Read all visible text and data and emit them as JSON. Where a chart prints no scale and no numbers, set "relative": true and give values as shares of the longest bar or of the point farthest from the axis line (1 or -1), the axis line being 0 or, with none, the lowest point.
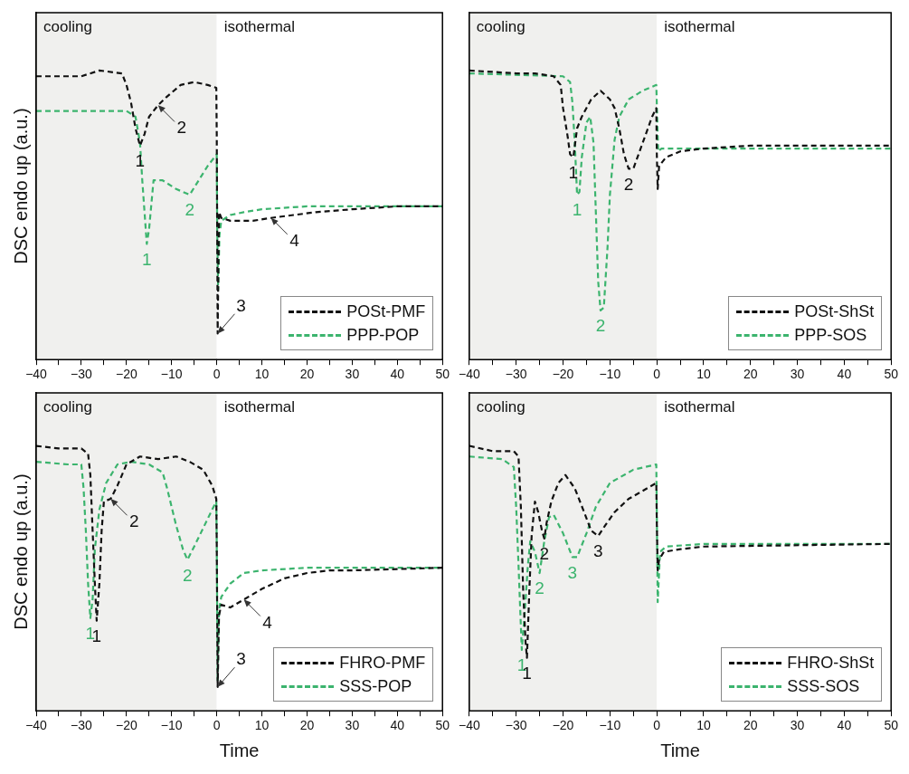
{
  "chart_data": [
    {
      "type": "line",
      "ylabel": "DSC endo up (a.u.)",
      "relative": true,
      "line_style": "dashed",
      "legend": "bottom right",
      "xlim": [
        -40,
        50
      ],
      "xticks": [
        -40,
        {
          "value": -35,
          "label": null
        },
        -30,
        {
          "value": -25,
          "label": null
        },
        -20,
        {
          "value": -15,
          "label": null
        },
        -10,
        {
          "value": -5,
          "label": null
        },
        0,
        {
          "value": 5,
          "label": null
        },
        10,
        {
          "value": 15,
          "label": null
        },
        20,
        {
          "value": 25,
          "label": null
        },
        30,
        {
          "value": 35,
          "label": null
        },
        40,
        {
          "value": 45,
          "label": null
        },
        50
      ],
      "bands": [
        {
          "axis": "x",
          "from": -40,
          "to": 0,
          "label": "cooling",
          "color": "#f0f0ee"
        },
        {
          "axis": "x",
          "from": 0,
          "to": 50,
          "label": "isothermal",
          "color": "#ffffff"
        }
      ],
      "series": [
        {
          "name": "POSt-PMF",
          "color": "#111111",
          "x": [
            -40,
            -30,
            -26,
            -21,
            -20,
            -19,
            -18,
            -17,
            -16,
            -15,
            -13,
            -11,
            -8,
            -5,
            -2,
            -0.1,
            0,
            0.2,
            0.5,
            1,
            3,
            8,
            12,
            17,
            22,
            30,
            40,
            50
          ],
          "values": [
            0.98,
            0.98,
            1.0,
            0.99,
            0.95,
            0.89,
            0.8,
            0.74,
            0.78,
            0.84,
            0.88,
            0.91,
            0.95,
            0.96,
            0.95,
            0.94,
            0.78,
            0.09,
            0.51,
            0.49,
            0.48,
            0.48,
            0.49,
            0.5,
            0.51,
            0.52,
            0.53,
            0.53
          ]
        },
        {
          "name": "PPP-POP",
          "color": "#3cb46e",
          "x": [
            -40,
            -20,
            -18,
            -17,
            -16.5,
            -16,
            -15.5,
            -15,
            -14,
            -12,
            -9,
            -6,
            -4,
            -2,
            0,
            0.1,
            0.3,
            0.6,
            1,
            3,
            6,
            10,
            20,
            30,
            50
          ],
          "values": [
            0.86,
            0.86,
            0.84,
            0.75,
            0.62,
            0.51,
            0.4,
            0.45,
            0.62,
            0.62,
            0.59,
            0.57,
            0.62,
            0.67,
            0.71,
            0.45,
            0.24,
            0.43,
            0.48,
            0.5,
            0.51,
            0.52,
            0.53,
            0.53,
            0.53
          ]
        }
      ],
      "annotations": [
        {
          "text": "1",
          "x": -17,
          "y": 0.74
        },
        {
          "text": "2",
          "x": -13,
          "y": 0.88
        },
        {
          "text": "1",
          "x": -15.5,
          "y": 0.4
        },
        {
          "text": "2",
          "x": -6,
          "y": 0.57
        },
        {
          "text": "3",
          "x": 0.2,
          "y": 0.09
        },
        {
          "text": "4",
          "x": 12,
          "y": 0.49
        }
      ]
    },
    {
      "type": "line",
      "relative": true,
      "line_style": "dashed",
      "legend": "bottom right",
      "xlim": [
        -40,
        50
      ],
      "xticks": [
        -40,
        {
          "value": -35,
          "label": null
        },
        -30,
        {
          "value": -25,
          "label": null
        },
        -20,
        {
          "value": -15,
          "label": null
        },
        -10,
        {
          "value": -5,
          "label": null
        },
        0,
        {
          "value": 5,
          "label": null
        },
        10,
        {
          "value": 15,
          "label": null
        },
        20,
        {
          "value": 25,
          "label": null
        },
        30,
        {
          "value": 35,
          "label": null
        },
        40,
        {
          "value": 45,
          "label": null
        },
        50
      ],
      "bands": [
        {
          "axis": "x",
          "from": -40,
          "to": 0,
          "label": "cooling",
          "color": "#f0f0ee"
        },
        {
          "axis": "x",
          "from": 0,
          "to": 50,
          "label": "isothermal",
          "color": "#ffffff"
        }
      ],
      "series": [
        {
          "name": "POSt-ShSt",
          "color": "#111111",
          "x": [
            -40,
            -30,
            -26,
            -22,
            -20.5,
            -20,
            -19,
            -18.5,
            -17.8,
            -17,
            -16,
            -14,
            -12,
            -10,
            -9,
            -8,
            -7,
            -6,
            -5,
            -3,
            -1,
            -0.1,
            0,
            0.2,
            0.5,
            2,
            5,
            10,
            20,
            50
          ],
          "values": [
            1.0,
            0.99,
            0.99,
            0.98,
            0.95,
            0.87,
            0.77,
            0.71,
            0.7,
            0.8,
            0.84,
            0.9,
            0.93,
            0.9,
            0.87,
            0.8,
            0.71,
            0.66,
            0.66,
            0.75,
            0.84,
            0.87,
            0.72,
            0.59,
            0.67,
            0.7,
            0.72,
            0.73,
            0.74,
            0.74
          ]
        },
        {
          "name": "PPP-SOS",
          "color": "#3cb46e",
          "x": [
            -40,
            -20,
            -18.5,
            -18,
            -17.5,
            -17,
            -16.5,
            -16,
            -15,
            -14.2,
            -13.5,
            -13,
            -12.5,
            -12,
            -11.3,
            -10.5,
            -10,
            -9,
            -8,
            -6,
            -3,
            -0.1,
            0,
            0.3,
            1,
            5,
            20,
            50
          ],
          "values": [
            0.99,
            0.98,
            0.96,
            0.89,
            0.75,
            0.57,
            0.58,
            0.7,
            0.82,
            0.84,
            0.75,
            0.51,
            0.27,
            0.17,
            0.18,
            0.39,
            0.57,
            0.76,
            0.84,
            0.9,
            0.93,
            0.95,
            0.89,
            0.72,
            0.73,
            0.73,
            0.73,
            0.73
          ]
        }
      ],
      "annotations": [
        {
          "text": "1",
          "x": -17.8,
          "y": 0.7
        },
        {
          "text": "1",
          "x": -17,
          "y": 0.57
        },
        {
          "text": "2",
          "x": -6,
          "y": 0.66
        },
        {
          "text": "2",
          "x": -12,
          "y": 0.17
        }
      ]
    },
    {
      "type": "line",
      "xlabel": "Time",
      "ylabel": "DSC endo up (a.u.)",
      "relative": true,
      "line_style": "dashed",
      "legend": "bottom right",
      "xlim": [
        -40,
        50
      ],
      "xticks": [
        -40,
        {
          "value": -35,
          "label": null
        },
        -30,
        {
          "value": -25,
          "label": null
        },
        -20,
        {
          "value": -15,
          "label": null
        },
        -10,
        {
          "value": -5,
          "label": null
        },
        0,
        {
          "value": 5,
          "label": null
        },
        10,
        {
          "value": 15,
          "label": null
        },
        20,
        {
          "value": 25,
          "label": null
        },
        30,
        {
          "value": 35,
          "label": null
        },
        40,
        {
          "value": 45,
          "label": null
        },
        50
      ],
      "bands": [
        {
          "axis": "x",
          "from": -40,
          "to": 0,
          "label": "cooling",
          "color": "#f0f0ee"
        },
        {
          "axis": "x",
          "from": 0,
          "to": 50,
          "label": "isothermal",
          "color": "#ffffff"
        }
      ],
      "series": [
        {
          "name": "FHRO-PMF",
          "color": "#111111",
          "x": [
            -40,
            -35,
            -30,
            -28.5,
            -28,
            -27.5,
            -27,
            -26.6,
            -26,
            -25.5,
            -25,
            -23.5,
            -22,
            -20,
            -17,
            -13,
            -9,
            -6,
            -3,
            -1,
            -0.1,
            0,
            0.2,
            0.5,
            1,
            3,
            6,
            10,
            15,
            20,
            25,
            30,
            50
          ],
          "values": [
            1.0,
            0.99,
            0.99,
            0.97,
            0.89,
            0.68,
            0.48,
            0.34,
            0.48,
            0.68,
            0.79,
            0.8,
            0.85,
            0.93,
            0.96,
            0.95,
            0.96,
            0.94,
            0.91,
            0.85,
            0.8,
            0.63,
            0.09,
            0.36,
            0.4,
            0.39,
            0.42,
            0.46,
            0.5,
            0.52,
            0.53,
            0.53,
            0.54
          ]
        },
        {
          "name": "SSS-POP",
          "color": "#3cb46e",
          "x": [
            -40,
            -33,
            -30,
            -29.5,
            -29,
            -28.5,
            -28,
            -27.5,
            -27,
            -26,
            -24.5,
            -22,
            -19,
            -15,
            -12,
            -11,
            -9,
            -7.5,
            -6.5,
            -5,
            -3,
            -1,
            -0.1,
            0,
            0.2,
            0.5,
            1,
            3,
            6,
            10,
            20,
            50
          ],
          "values": [
            0.94,
            0.93,
            0.93,
            0.84,
            0.68,
            0.48,
            0.35,
            0.42,
            0.61,
            0.76,
            0.86,
            0.93,
            0.94,
            0.93,
            0.9,
            0.84,
            0.7,
            0.61,
            0.57,
            0.62,
            0.69,
            0.76,
            0.79,
            0.63,
            0.11,
            0.38,
            0.43,
            0.48,
            0.52,
            0.53,
            0.54,
            0.54
          ]
        }
      ],
      "annotations": [
        {
          "text": "1",
          "x": -28,
          "y": 0.35
        },
        {
          "text": "1",
          "x": -26.6,
          "y": 0.34
        },
        {
          "text": "2",
          "x": -23.5,
          "y": 0.8
        },
        {
          "text": "2",
          "x": -6.5,
          "y": 0.57
        },
        {
          "text": "3",
          "x": 0.2,
          "y": 0.09
        },
        {
          "text": "4",
          "x": 6,
          "y": 0.42
        }
      ]
    },
    {
      "type": "line",
      "xlabel": "Time",
      "relative": true,
      "line_style": "dashed",
      "legend": "bottom right",
      "xlim": [
        -40,
        50
      ],
      "xticks": [
        -40,
        {
          "value": -35,
          "label": null
        },
        -30,
        {
          "value": -25,
          "label": null
        },
        -20,
        {
          "value": -15,
          "label": null
        },
        -10,
        {
          "value": -5,
          "label": null
        },
        0,
        {
          "value": 5,
          "label": null
        },
        10,
        {
          "value": 15,
          "label": null
        },
        20,
        {
          "value": 25,
          "label": null
        },
        30,
        {
          "value": 35,
          "label": null
        },
        40,
        {
          "value": 45,
          "label": null
        },
        50
      ],
      "bands": [
        {
          "axis": "x",
          "from": -40,
          "to": 0,
          "label": "cooling",
          "color": "#f0f0ee"
        },
        {
          "axis": "x",
          "from": 0,
          "to": 50,
          "label": "isothermal",
          "color": "#ffffff"
        }
      ],
      "series": [
        {
          "name": "FHRO-ShSt",
          "color": "#111111",
          "x": [
            -40,
            -35,
            -30.5,
            -29.5,
            -29,
            -28.5,
            -28,
            -27.7,
            -27.2,
            -26.7,
            -26,
            -25.3,
            -24.5,
            -24,
            -23.5,
            -22.5,
            -21,
            -19.5,
            -17.5,
            -15.5,
            -14,
            -12.5,
            -11,
            -9,
            -6,
            -3,
            -0.1,
            0,
            0.2,
            0.5,
            1.5,
            5,
            10,
            50
          ],
          "values": [
            1.0,
            0.98,
            0.98,
            0.96,
            0.77,
            0.45,
            0.26,
            0.2,
            0.45,
            0.66,
            0.79,
            0.75,
            0.68,
            0.65,
            0.71,
            0.79,
            0.86,
            0.89,
            0.84,
            0.75,
            0.68,
            0.66,
            0.7,
            0.75,
            0.8,
            0.83,
            0.86,
            0.72,
            0.53,
            0.57,
            0.6,
            0.61,
            0.62,
            0.63
          ]
        },
        {
          "name": "SSS-SOS",
          "color": "#3cb46e",
          "x": [
            -40,
            -33,
            -30.5,
            -30,
            -29.5,
            -29,
            -28.8,
            -28.3,
            -27.5,
            -27,
            -26,
            -25,
            -24,
            -23,
            -22,
            -20,
            -18,
            -17,
            -15,
            -13,
            -10,
            -5,
            -0.1,
            0,
            0.2,
            0.7,
            2,
            10,
            50
          ],
          "values": [
            0.96,
            0.95,
            0.92,
            0.77,
            0.55,
            0.32,
            0.23,
            0.34,
            0.55,
            0.64,
            0.6,
            0.52,
            0.64,
            0.73,
            0.74,
            0.67,
            0.58,
            0.58,
            0.67,
            0.77,
            0.86,
            0.91,
            0.93,
            0.77,
            0.41,
            0.6,
            0.62,
            0.63,
            0.63
          ]
        }
      ],
      "annotations": [
        {
          "text": "1",
          "x": -28.8,
          "y": 0.23
        },
        {
          "text": "1",
          "x": -27.7,
          "y": 0.2
        },
        {
          "text": "2",
          "x": -24,
          "y": 0.65
        },
        {
          "text": "2",
          "x": -25,
          "y": 0.52
        },
        {
          "text": "3",
          "x": -18,
          "y": 0.58
        },
        {
          "text": "3",
          "x": -12.5,
          "y": 0.66
        }
      ]
    }
  ]
}
